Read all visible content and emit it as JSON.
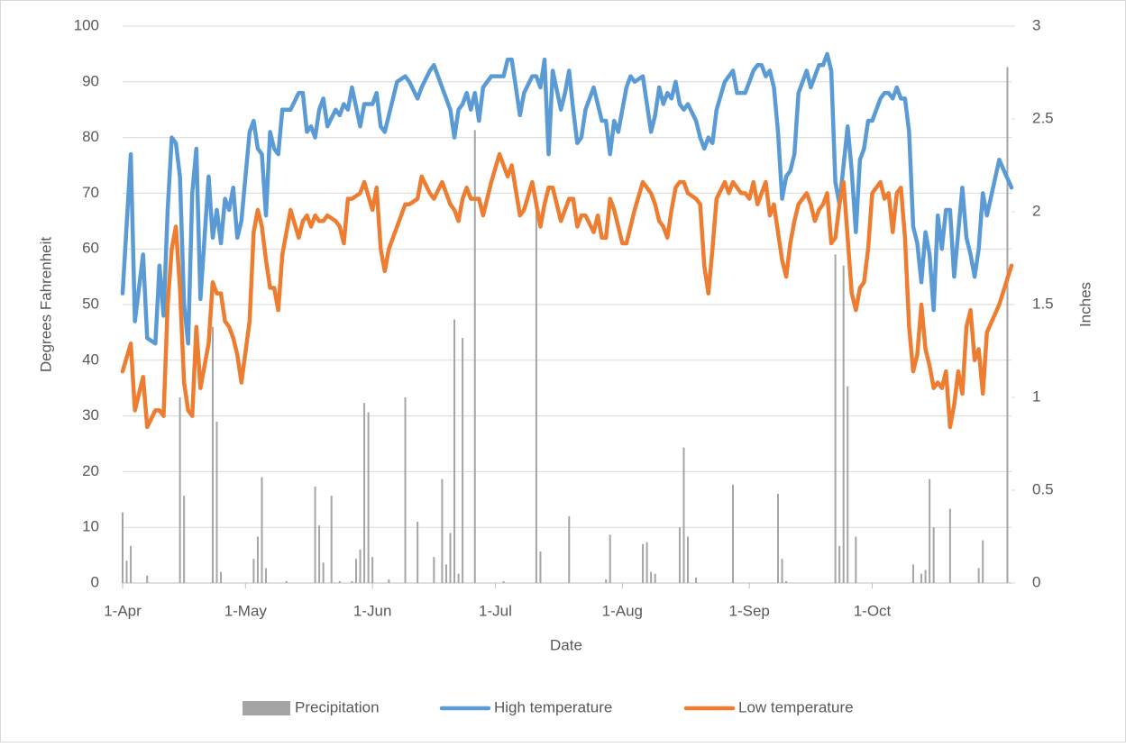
{
  "chart_data": {
    "type": "line",
    "x_label": "Date",
    "y_label": "Degrees Fahrenheit",
    "y2_label": "Inches",
    "xlim": [
      0,
      217
    ],
    "xticks": [
      {
        "value": 0,
        "label": "1-Apr"
      },
      {
        "value": 30,
        "label": "1-May"
      },
      {
        "value": 61,
        "label": "1-Jun"
      },
      {
        "value": 91,
        "label": "1-Jul"
      },
      {
        "value": 122,
        "label": "1-Aug"
      },
      {
        "value": 153,
        "label": "1-Sep"
      },
      {
        "value": 183,
        "label": "1-Oct"
      }
    ],
    "ylim": [
      0,
      100
    ],
    "yticks": [
      0,
      10,
      20,
      30,
      40,
      50,
      60,
      70,
      80,
      90,
      100
    ],
    "y2lim": [
      0,
      3
    ],
    "y2ticks": [
      0,
      0.5,
      1,
      1.5,
      2,
      2.5,
      3
    ],
    "grid": true,
    "x": [
      0,
      2,
      3,
      5,
      6,
      8,
      9,
      10,
      11,
      12,
      13,
      14,
      15,
      16,
      17,
      18,
      19,
      21,
      22,
      23,
      24,
      25,
      26,
      27,
      28,
      29,
      31,
      32,
      33,
      34,
      35,
      36,
      37,
      38,
      39,
      41,
      43,
      44,
      45,
      46,
      47,
      48,
      49,
      50,
      52,
      53,
      54,
      55,
      56,
      58,
      59,
      61,
      62,
      63,
      64,
      65,
      67,
      69,
      70,
      72,
      73,
      75,
      76,
      78,
      80,
      81,
      82,
      83,
      84,
      85,
      86,
      87,
      88,
      90,
      92,
      93,
      94,
      95,
      97,
      98,
      100,
      101,
      102,
      103,
      104,
      105,
      107,
      108,
      109,
      110,
      111,
      112,
      113,
      115,
      116,
      117,
      118,
      119,
      120,
      121,
      122,
      123,
      124,
      125,
      127,
      129,
      130,
      131,
      132,
      133,
      134,
      135,
      136,
      137,
      138,
      140,
      141,
      142,
      143,
      144,
      145,
      147,
      148,
      149,
      150,
      151,
      152,
      153,
      154,
      155,
      156,
      157,
      158,
      159,
      160,
      161,
      162,
      163,
      164,
      165,
      167,
      168,
      169,
      170,
      171,
      172,
      173,
      174,
      175,
      176,
      177,
      178,
      179,
      180,
      181,
      182,
      183,
      185,
      186,
      187,
      188,
      189,
      190,
      191,
      192,
      193,
      194,
      195,
      196,
      197,
      198,
      199,
      200,
      201,
      202,
      203,
      204,
      205,
      206,
      207,
      208,
      209,
      210,
      211,
      214,
      217
    ],
    "series": [
      {
        "name": "Precipitation",
        "type": "bar",
        "axis": "y2",
        "color": "#a5a5a5",
        "x": [
          0,
          1,
          2,
          6,
          14,
          15,
          22,
          23,
          24,
          32,
          33,
          34,
          35,
          40,
          47,
          48,
          49,
          51,
          53,
          56,
          57,
          58,
          59,
          60,
          61,
          65,
          69,
          72,
          76,
          78,
          79,
          80,
          81,
          82,
          83,
          86,
          93,
          101,
          102,
          109,
          118,
          119,
          127,
          128,
          129,
          130,
          136,
          137,
          138,
          140,
          149,
          160,
          161,
          162,
          174,
          175,
          176,
          177,
          179,
          193,
          195,
          196,
          197,
          198,
          202,
          209,
          210,
          216
        ],
        "values": [
          0.38,
          0.12,
          0.2,
          0.04,
          1,
          0.47,
          1.38,
          0.87,
          0.06,
          0.13,
          0.25,
          0.57,
          0.08,
          0.01,
          0.52,
          0.31,
          0.11,
          0.47,
          0.01,
          0.01,
          0.13,
          0.18,
          0.97,
          0.92,
          0.14,
          0.02,
          1,
          0.33,
          0.14,
          0.56,
          0.1,
          0.27,
          1.42,
          0.05,
          1.32,
          2.44,
          0.01,
          2,
          0.17,
          0.36,
          0.02,
          0.26,
          0.21,
          0.22,
          0.06,
          0.05,
          0.3,
          0.73,
          0.25,
          0.03,
          0.53,
          0.48,
          0.13,
          0.01,
          1.77,
          0.2,
          1.71,
          1.06,
          0.25,
          0.1,
          0.05,
          0.07,
          0.56,
          0.3,
          0.4,
          0.08,
          0.23,
          2.78
        ]
      },
      {
        "name": "High temperature",
        "type": "line",
        "color": "#5b9bd5",
        "values": [
          52,
          77,
          47,
          59,
          44,
          43,
          57,
          48,
          67,
          80,
          79,
          73,
          50,
          43,
          70,
          78,
          51,
          73,
          62,
          67,
          61,
          69,
          67,
          71,
          62,
          65,
          81,
          83,
          78,
          77,
          66,
          81,
          78,
          77,
          85,
          85,
          88,
          88,
          81,
          82,
          80,
          85,
          87,
          82,
          85,
          84,
          86,
          85,
          89,
          82,
          86,
          86,
          88,
          82,
          81,
          84,
          90,
          91,
          90,
          87,
          89,
          92,
          93,
          89,
          85,
          80,
          85,
          86,
          88,
          85,
          88,
          83,
          89,
          91,
          91,
          91,
          94,
          94,
          84,
          88,
          91,
          91,
          89,
          94,
          77,
          92,
          85,
          88,
          92,
          85,
          79,
          80,
          85,
          89,
          86,
          83,
          83,
          77,
          83,
          81,
          85,
          89,
          91,
          90,
          91,
          81,
          84,
          89,
          86,
          88,
          87,
          90,
          86,
          85,
          86,
          83,
          80,
          78,
          80,
          79,
          85,
          90,
          91,
          92,
          88,
          88,
          88,
          90,
          92,
          93,
          93,
          91,
          92,
          89,
          81,
          69,
          73,
          74,
          77,
          88,
          92,
          89,
          91,
          93,
          93,
          95,
          92,
          72,
          68,
          75,
          82,
          74,
          63,
          76,
          78,
          83,
          83,
          87,
          88,
          88,
          87,
          89,
          87,
          87,
          81,
          64,
          61,
          54,
          63,
          59,
          49,
          66,
          60,
          67,
          67,
          55,
          63,
          71,
          62,
          59,
          55,
          60,
          70,
          66,
          76,
          71
        ]
      },
      {
        "name": "Low temperature",
        "type": "line",
        "color": "#ed7d31",
        "values": [
          38,
          43,
          31,
          37,
          28,
          31,
          31,
          30,
          50,
          60,
          64,
          53,
          36,
          31,
          30,
          46,
          35,
          43,
          54,
          52,
          52,
          47,
          46,
          44,
          41,
          36,
          47,
          63,
          67,
          64,
          58,
          53,
          53,
          49,
          59,
          67,
          62,
          65,
          66,
          64,
          66,
          65,
          65,
          66,
          65,
          64,
          61,
          69,
          69,
          70,
          72,
          67,
          71,
          60,
          56,
          60,
          64,
          68,
          68,
          69,
          73,
          70,
          69,
          72,
          68,
          67,
          65,
          69,
          71,
          69,
          69,
          69,
          66,
          72,
          77,
          75,
          73,
          75,
          66,
          67,
          72,
          68,
          64,
          68,
          71,
          71,
          65,
          67,
          69,
          69,
          64,
          66,
          66,
          63,
          66,
          62,
          62,
          69,
          67,
          64,
          61,
          61,
          64,
          67,
          72,
          70,
          68,
          65,
          64,
          62,
          67,
          71,
          72,
          72,
          70,
          69,
          68,
          57,
          52,
          60,
          69,
          72,
          70,
          72,
          71,
          70,
          70,
          69,
          72,
          68,
          70,
          72,
          66,
          68,
          63,
          58,
          55,
          61,
          65,
          68,
          70,
          68,
          65,
          67,
          68,
          70,
          61,
          62,
          68,
          72,
          62,
          52,
          49,
          53,
          54,
          60,
          70,
          72,
          69,
          70,
          63,
          70,
          71,
          62,
          46,
          38,
          41,
          50,
          42,
          39,
          35,
          36,
          35,
          38,
          28,
          32,
          38,
          34,
          46,
          49,
          40,
          42,
          34,
          45,
          50,
          57
        ]
      }
    ]
  }
}
